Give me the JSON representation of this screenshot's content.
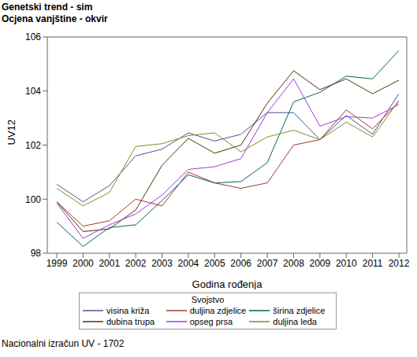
{
  "chart_data": {
    "type": "line",
    "title": "Genetski trend - sim",
    "subtitle": "Ocjena vanjštine - okvir",
    "x_label": "Godina rođenja",
    "y_label": "UV12",
    "legend_title": "Svojstvo",
    "footnote": "Nacionalni izračun UV - 1702",
    "legend": "bottom",
    "grid": false,
    "x": [
      1999,
      2000,
      2001,
      2002,
      2003,
      2004,
      2005,
      2006,
      2007,
      2008,
      2009,
      2010,
      2011,
      2012
    ],
    "xlim": [
      1999,
      2012
    ],
    "xticks": [
      1999,
      2000,
      2001,
      2002,
      2003,
      2004,
      2005,
      2006,
      2007,
      2008,
      2009,
      2010,
      2011,
      2012
    ],
    "ylim": [
      98,
      106
    ],
    "yticks": [
      98,
      100,
      102,
      104,
      106
    ],
    "series": [
      {
        "name": "visina križa",
        "color": "#445694",
        "values": [
          100.55,
          99.9,
          100.5,
          101.6,
          101.85,
          102.45,
          102.15,
          102.4,
          103.2,
          103.2,
          102.2,
          103.1,
          102.4,
          103.9
        ]
      },
      {
        "name": "duljina zdjelice",
        "color": "#A23A2E",
        "values": [
          99.9,
          99.0,
          99.2,
          100.0,
          99.75,
          101.0,
          100.6,
          100.4,
          100.6,
          102.0,
          102.2,
          103.3,
          102.6,
          103.6
        ]
      },
      {
        "name": "širina zdjelice",
        "color": "#01665E",
        "values": [
          99.15,
          98.25,
          98.95,
          99.05,
          99.95,
          100.9,
          100.6,
          100.65,
          101.35,
          103.6,
          103.95,
          104.55,
          104.45,
          105.5
        ]
      },
      {
        "name": "dubina trupa",
        "color": "#543005",
        "values": [
          99.9,
          98.8,
          98.9,
          99.6,
          101.25,
          102.25,
          101.7,
          102.0,
          103.55,
          104.75,
          104.05,
          104.45,
          103.9,
          104.4
        ]
      },
      {
        "name": "opseg prsa",
        "color": "#9D3CDB",
        "values": [
          99.85,
          98.55,
          99.05,
          99.45,
          100.15,
          101.1,
          101.2,
          101.5,
          103.2,
          104.45,
          102.7,
          103.05,
          103.0,
          103.5
        ]
      },
      {
        "name": "duljina leđa",
        "color": "#7F8E1F",
        "values": [
          100.4,
          99.75,
          100.25,
          101.95,
          102.05,
          102.35,
          102.45,
          101.75,
          102.3,
          102.55,
          102.2,
          102.85,
          102.3,
          103.65
        ]
      }
    ]
  }
}
